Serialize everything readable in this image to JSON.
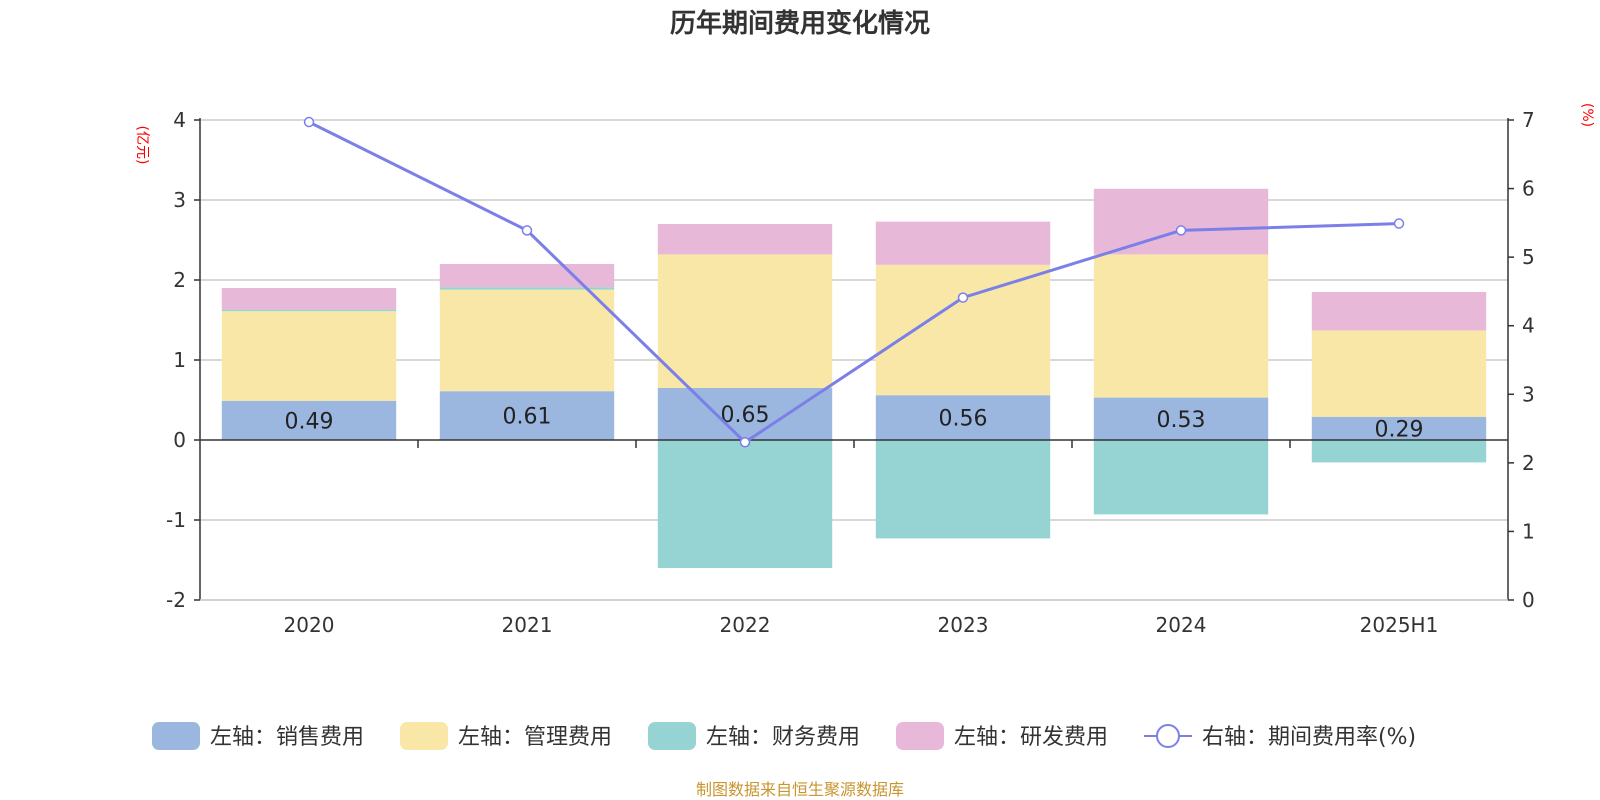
{
  "chart_data": {
    "type": "bar",
    "title": "历年期间费用变化情况",
    "categories": [
      "2020",
      "2021",
      "2022",
      "2023",
      "2024",
      "2025H1"
    ],
    "left_axis": {
      "unit": "(亿元)",
      "ylim": [
        -2,
        4
      ],
      "ticks": [
        4,
        3,
        2,
        1,
        0,
        -1,
        -2
      ]
    },
    "right_axis": {
      "unit": "(%)",
      "ylim": [
        0,
        7
      ],
      "ticks": [
        7,
        6,
        5,
        4,
        3,
        2,
        1,
        0
      ]
    },
    "grid": true,
    "legend_position": "bottom",
    "series": [
      {
        "name": "左轴：销售费用",
        "axis": "left",
        "kind": "bar",
        "color": "#9bb7e0",
        "values": [
          0.49,
          0.61,
          0.65,
          0.56,
          0.53,
          0.29
        ],
        "labels": [
          "0.49",
          "0.61",
          "0.65",
          "0.56",
          "0.53",
          "0.29"
        ]
      },
      {
        "name": "左轴：管理费用",
        "axis": "left",
        "kind": "bar",
        "color": "#f8e7a6",
        "values": [
          1.12,
          1.27,
          1.67,
          1.63,
          1.79,
          1.08
        ]
      },
      {
        "name": "左轴：财务费用",
        "axis": "left",
        "kind": "bar",
        "color": "#96d4d4",
        "values": [
          0.02,
          0.03,
          -1.6,
          -1.23,
          -0.93,
          -0.28
        ]
      },
      {
        "name": "左轴：研发费用",
        "axis": "left",
        "kind": "bar",
        "color": "#e8b8d9",
        "values": [
          0.27,
          0.29,
          0.38,
          0.54,
          0.82,
          0.48
        ]
      },
      {
        "name": "右轴：期间费用率(%)",
        "axis": "right",
        "kind": "line",
        "color": "#7b7fe8",
        "values": [
          6.97,
          5.39,
          2.3,
          4.41,
          5.39,
          5.49
        ]
      }
    ],
    "source": "制图数据来自恒生聚源数据库"
  }
}
